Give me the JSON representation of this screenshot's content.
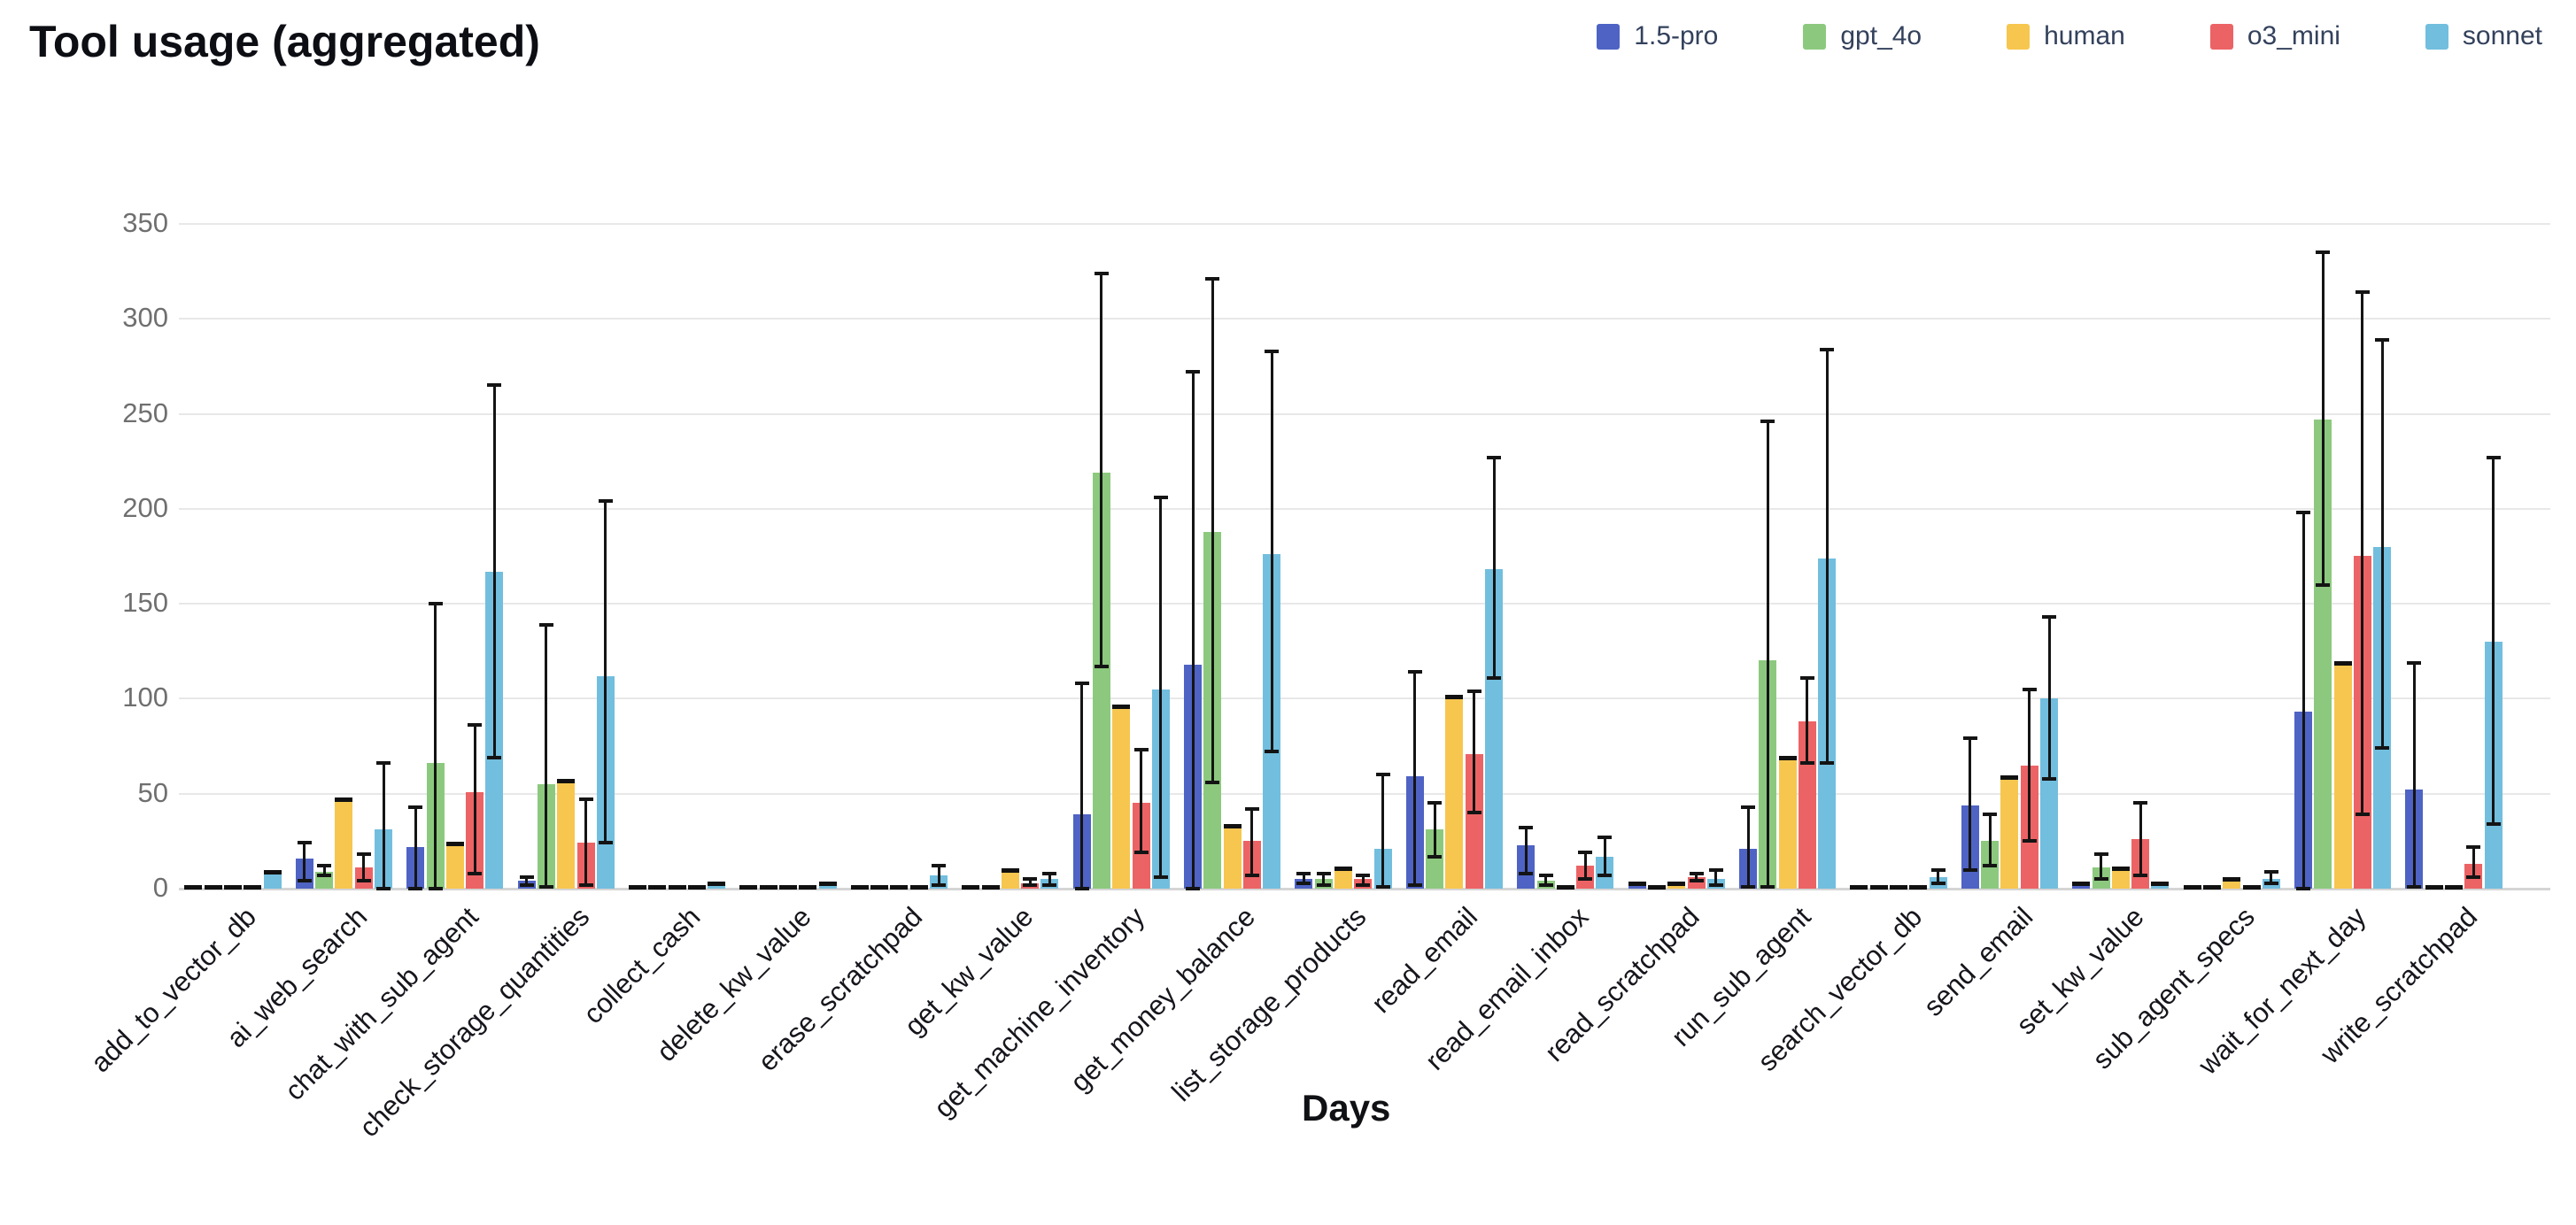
{
  "header": {
    "title": "Tool usage (aggregated)"
  },
  "chart_data": {
    "type": "bar",
    "title": "Tool usage (aggregated)",
    "xlabel": "Days",
    "ylabel": "",
    "ylim": [
      0,
      350
    ],
    "yticks": [
      0,
      50,
      100,
      150,
      200,
      250,
      300,
      350
    ],
    "grid": true,
    "legend_position": "top-right",
    "error_bars": true,
    "error_bar_color": "#141414",
    "background_color": "#ffffff",
    "categories": [
      "add_to_vector_db",
      "ai_web_search",
      "chat_with_sub_agent",
      "check_storage_quantities",
      "collect_cash",
      "delete_kw_value",
      "erase_scratchpad",
      "get_kw_value",
      "get_machine_inventory",
      "get_money_balance",
      "list_storage_products",
      "read_email",
      "read_email_inbox",
      "read_scratchpad",
      "run_sub_agent",
      "search_vector_db",
      "send_email",
      "set_kw_value",
      "sub_agent_specs",
      "wait_for_next_day",
      "write_scratchpad"
    ],
    "series": [
      {
        "name": "1.5-pro",
        "color": "#4e63c4",
        "values": [
          0,
          16,
          22,
          4,
          0,
          0,
          0,
          0,
          39,
          118,
          5,
          59,
          23,
          2,
          21,
          0,
          44,
          2,
          0,
          93,
          52
        ],
        "err_lo": [
          0,
          4,
          0,
          2,
          0,
          0,
          0,
          0,
          0,
          0,
          3,
          2,
          8,
          2,
          1,
          0,
          10,
          2,
          0,
          0,
          1
        ],
        "err_hi": [
          0,
          24,
          43,
          6,
          0,
          0,
          0,
          0,
          108,
          272,
          8,
          114,
          32,
          2,
          43,
          0,
          79,
          2,
          0,
          198,
          119
        ]
      },
      {
        "name": "gpt_4o",
        "color": "#8cc97e",
        "values": [
          0,
          9,
          66,
          55,
          0,
          0,
          0,
          0,
          219,
          188,
          5,
          31,
          4,
          0,
          120,
          0,
          25,
          11,
          0,
          247,
          0
        ],
        "err_lo": [
          0,
          7,
          0,
          1,
          0,
          0,
          0,
          0,
          117,
          56,
          2,
          17,
          2,
          0,
          1,
          0,
          12,
          5,
          0,
          160,
          0
        ],
        "err_hi": [
          0,
          12,
          150,
          139,
          0,
          0,
          0,
          0,
          324,
          321,
          8,
          45,
          7,
          0,
          246,
          0,
          39,
          18,
          0,
          335,
          0
        ]
      },
      {
        "name": "human",
        "color": "#f7c64f",
        "values": [
          0,
          46,
          23,
          56,
          0,
          0,
          0,
          9,
          95,
          32,
          10,
          100,
          0,
          2,
          68,
          0,
          58,
          10,
          4,
          118,
          0
        ],
        "err_lo": [
          0,
          46,
          23,
          56,
          0,
          0,
          0,
          9,
          95,
          32,
          10,
          100,
          0,
          2,
          68,
          0,
          58,
          10,
          4,
          118,
          0
        ],
        "err_hi": [
          0,
          46,
          23,
          56,
          0,
          0,
          0,
          9,
          95,
          32,
          10,
          100,
          0,
          2,
          68,
          0,
          58,
          10,
          4,
          118,
          0
        ]
      },
      {
        "name": "o3_mini",
        "color": "#ec6365",
        "values": [
          0,
          11,
          51,
          24,
          0,
          0,
          0,
          3,
          45,
          25,
          5,
          71,
          12,
          6,
          88,
          0,
          65,
          26,
          0,
          175,
          13
        ],
        "err_lo": [
          0,
          4,
          8,
          2,
          0,
          0,
          0,
          2,
          19,
          7,
          2,
          40,
          5,
          4,
          66,
          0,
          25,
          7,
          0,
          39,
          6
        ],
        "err_hi": [
          0,
          18,
          86,
          47,
          0,
          0,
          0,
          5,
          73,
          42,
          7,
          104,
          19,
          8,
          111,
          0,
          105,
          45,
          0,
          314,
          22
        ]
      },
      {
        "name": "sonnet",
        "color": "#72bede",
        "values": [
          8,
          31,
          167,
          112,
          2,
          2,
          7,
          5,
          105,
          176,
          21,
          168,
          17,
          5,
          174,
          6,
          100,
          2,
          5,
          180,
          130
        ],
        "err_lo": [
          8,
          0,
          69,
          24,
          2,
          2,
          2,
          2,
          6,
          72,
          1,
          111,
          7,
          2,
          66,
          3,
          58,
          2,
          3,
          74,
          34
        ],
        "err_hi": [
          8,
          66,
          265,
          204,
          2,
          2,
          12,
          8,
          206,
          283,
          60,
          227,
          27,
          10,
          284,
          10,
          143,
          2,
          9,
          289,
          227
        ]
      }
    ]
  }
}
